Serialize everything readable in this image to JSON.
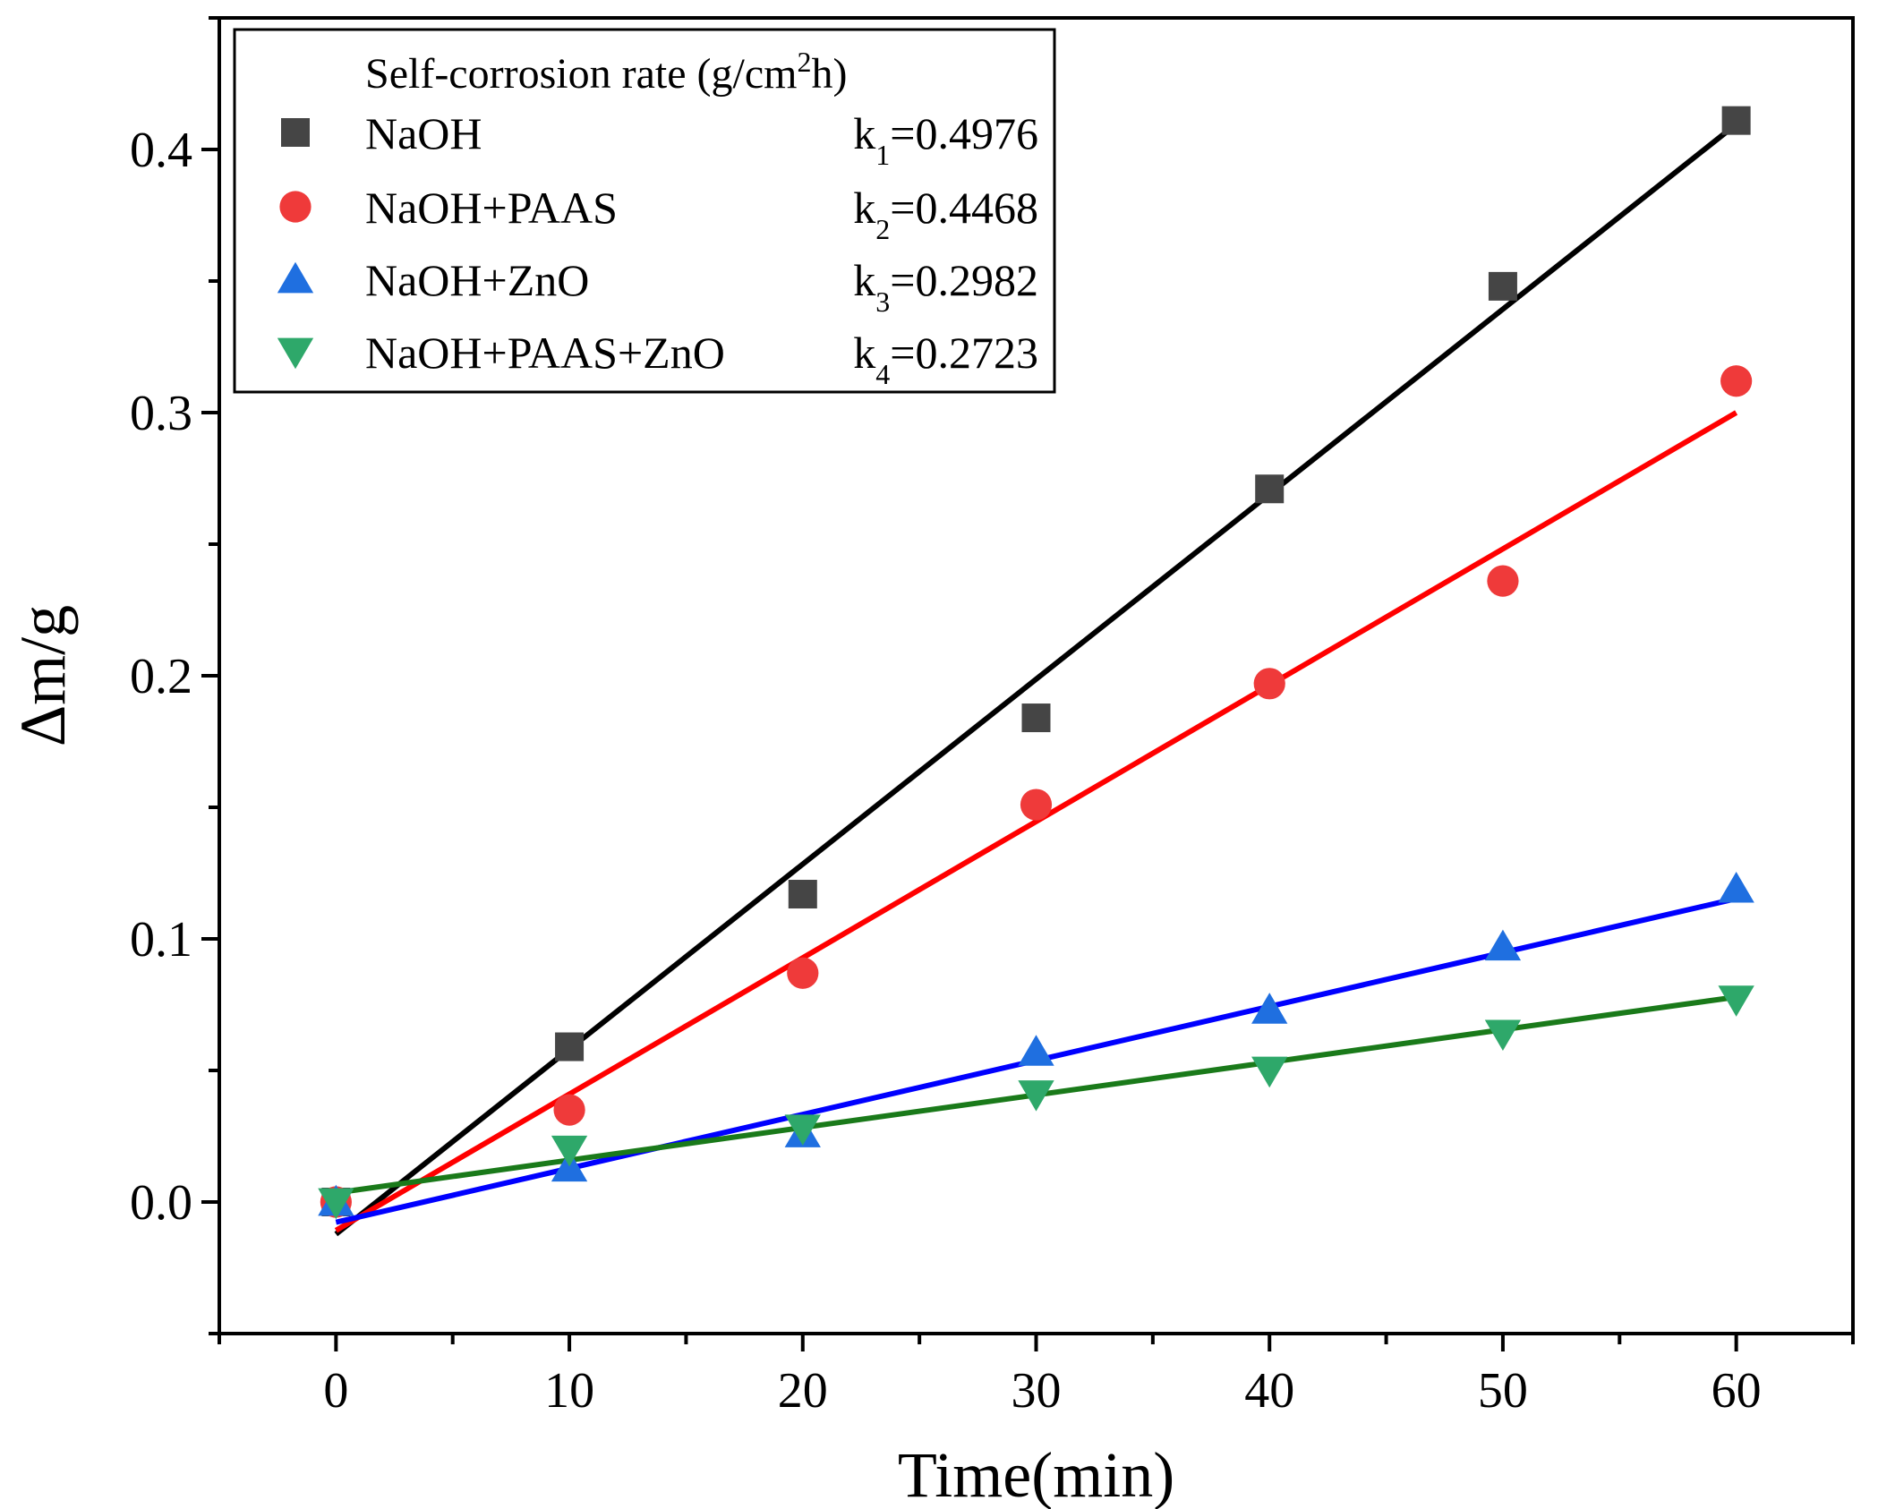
{
  "chart_data": {
    "type": "scatter",
    "xlabel": "Time(min)",
    "ylabel": "Δm/g",
    "xlim": [
      -5,
      65
    ],
    "ylim": [
      -0.05,
      0.45
    ],
    "xticks": [
      0,
      10,
      20,
      30,
      40,
      50,
      60
    ],
    "xtick_labels": [
      "0",
      "10",
      "20",
      "30",
      "40",
      "50",
      "60"
    ],
    "yticks": [
      0.0,
      0.1,
      0.2,
      0.3,
      0.4
    ],
    "ytick_labels": [
      "0.0",
      "0.1",
      "0.2",
      "0.3",
      "0.4"
    ],
    "x": [
      0,
      10,
      20,
      30,
      40,
      50,
      60
    ],
    "grid": false,
    "legend": {
      "position": "top-left",
      "title_main": "Self-corrosion rate (g/cm",
      "title_sup": "2",
      "title_end": "h)"
    },
    "series": [
      {
        "name": "NaOH",
        "marker": "square",
        "marker_color": "#454545",
        "line_color": "#000000",
        "values": [
          0.0,
          0.059,
          0.117,
          0.184,
          0.271,
          0.348,
          0.411
        ],
        "fit": {
          "slope": 0.00703,
          "intercept": -0.0122
        },
        "k_prefix": "k",
        "k_sub": "1",
        "k_value": "=0.4976"
      },
      {
        "name": "NaOH+PAAS",
        "marker": "circle",
        "marker_color": "#ef3a3a",
        "line_color": "#ff0000",
        "values": [
          0.0,
          0.035,
          0.087,
          0.151,
          0.197,
          0.236,
          0.312
        ],
        "fit": {
          "slope": 0.00518,
          "intercept": -0.0108
        },
        "k_prefix": "k",
        "k_sub": "2",
        "k_value": "=0.4468"
      },
      {
        "name": "NaOH+ZnO",
        "marker": "triangle-up",
        "marker_color": "#1f6fe0",
        "line_color": "#0000ff",
        "values": [
          0.0,
          0.013,
          0.026,
          0.057,
          0.073,
          0.097,
          0.119
        ],
        "fit": {
          "slope": 0.00205,
          "intercept": -0.0077
        },
        "k_prefix": "k",
        "k_sub": "3",
        "k_value": "=0.2982"
      },
      {
        "name": "NaOH+PAAS+ZnO",
        "marker": "triangle-down",
        "marker_color": "#2ea86a",
        "line_color": "#1a7a1a",
        "values": [
          0.0,
          0.02,
          0.028,
          0.041,
          0.05,
          0.064,
          0.077
        ],
        "fit": {
          "slope": 0.00124,
          "intercept": 0.0035
        },
        "k_prefix": "k",
        "k_sub": "4",
        "k_value": "=0.2723"
      }
    ]
  }
}
